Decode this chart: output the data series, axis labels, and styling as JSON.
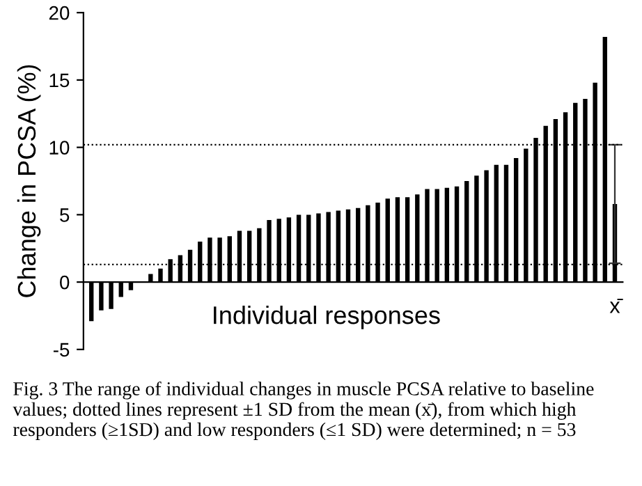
{
  "chart_data": {
    "type": "bar",
    "ylabel": "Change in PCSA (%)",
    "xlabel": "Individual responses",
    "categories": [
      null,
      null,
      null,
      null,
      null,
      null,
      null,
      null,
      null,
      null,
      null,
      null,
      null,
      null,
      null,
      null,
      null,
      null,
      null,
      null,
      null,
      null,
      null,
      null,
      null,
      null,
      null,
      null,
      null,
      null,
      null,
      null,
      null,
      null,
      null,
      null,
      null,
      null,
      null,
      null,
      null,
      null,
      null,
      null,
      null,
      null,
      null,
      null,
      null,
      null,
      null,
      null,
      null,
      "x̄"
    ],
    "values": [
      -2.9,
      -2.1,
      -2.0,
      -1.1,
      -0.6,
      0,
      0.6,
      1.0,
      1.7,
      2.0,
      2.4,
      3.0,
      3.3,
      3.3,
      3.4,
      3.8,
      3.8,
      4.0,
      4.6,
      4.7,
      4.8,
      5.0,
      5.0,
      5.1,
      5.2,
      5.3,
      5.4,
      5.5,
      5.7,
      5.9,
      6.2,
      6.3,
      6.3,
      6.5,
      6.9,
      6.9,
      7.0,
      7.1,
      7.5,
      7.9,
      8.3,
      8.7,
      8.7,
      9.2,
      9.9,
      10.7,
      11.6,
      12.1,
      12.6,
      13.3,
      13.6,
      14.8,
      18.2,
      5.8
    ],
    "errors": [
      null,
      null,
      null,
      null,
      null,
      null,
      null,
      null,
      null,
      null,
      null,
      null,
      null,
      null,
      null,
      null,
      null,
      null,
      null,
      null,
      null,
      null,
      null,
      null,
      null,
      null,
      null,
      null,
      null,
      null,
      null,
      null,
      null,
      null,
      null,
      null,
      null,
      null,
      null,
      null,
      null,
      null,
      null,
      null,
      null,
      null,
      null,
      null,
      null,
      null,
      null,
      null,
      null,
      4.4
    ],
    "color": "#000000",
    "ylim": [
      -5,
      20
    ],
    "yticks": [
      -5,
      0,
      5,
      10,
      15,
      20
    ],
    "ref_lines": [
      {
        "axis": "y",
        "value": 10.2,
        "line_style": "dotted"
      },
      {
        "axis": "y",
        "value": 1.3,
        "line_style": "dotted"
      }
    ],
    "annotations": [
      "Fig. 3 The range of individual changes in muscle PCSA relative to baseline values; dotted lines represent ±1 SD from the mean (x̄), from which high responders (≥1SD) and low responders (≤1 SD) were determined; n = 53"
    ]
  }
}
